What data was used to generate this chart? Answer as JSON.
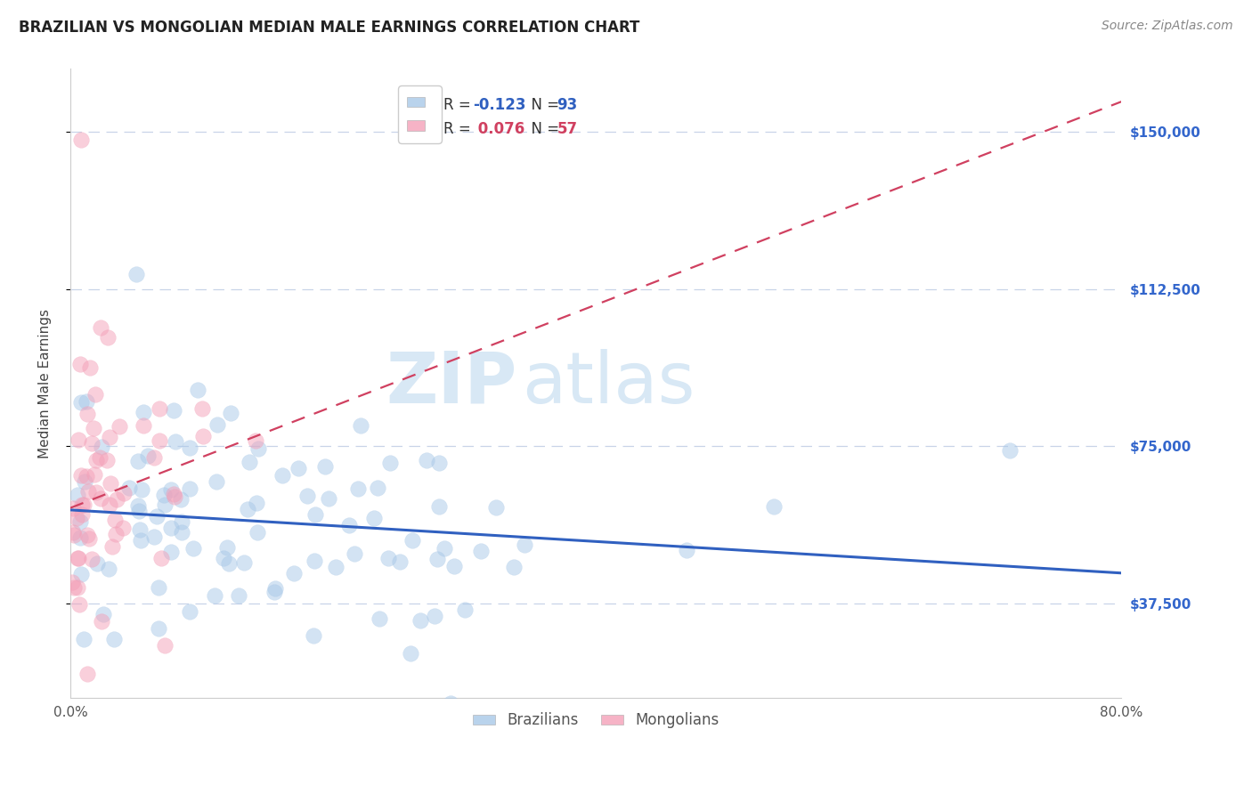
{
  "title": "BRAZILIAN VS MONGOLIAN MEDIAN MALE EARNINGS CORRELATION CHART",
  "source_text": "Source: ZipAtlas.com",
  "ylabel": "Median Male Earnings",
  "watermark_zip": "ZIP",
  "watermark_atlas": "atlas",
  "xmin": 0.0,
  "xmax": 0.8,
  "ymin": 15000,
  "ymax": 165000,
  "yticks": [
    37500,
    75000,
    112500,
    150000
  ],
  "ytick_labels": [
    "$37,500",
    "$75,000",
    "$112,500",
    "$150,000"
  ],
  "xticks": [
    0.0,
    0.1,
    0.2,
    0.3,
    0.4,
    0.5,
    0.6,
    0.7,
    0.8
  ],
  "blue_color": "#a8c8e8",
  "pink_color": "#f4a0b8",
  "trend_blue_color": "#3060c0",
  "trend_pink_color": "#d04060",
  "grid_color": "#c8d4e8",
  "title_color": "#222222",
  "ylabel_color": "#444444",
  "right_tick_color": "#3366cc",
  "background_color": "#ffffff",
  "title_fontsize": 12,
  "source_fontsize": 10,
  "watermark_zip_fontsize": 58,
  "watermark_atlas_fontsize": 58,
  "watermark_color": "#d8e8f5",
  "legend_blue_text_R": "R = ",
  "legend_blue_R_val": "-0.123",
  "legend_blue_N_label": "  N = ",
  "legend_blue_N_val": "93",
  "legend_pink_R_val": "0.076",
  "legend_pink_N_val": "57",
  "scatter_size": 160,
  "scatter_alpha": 0.5
}
